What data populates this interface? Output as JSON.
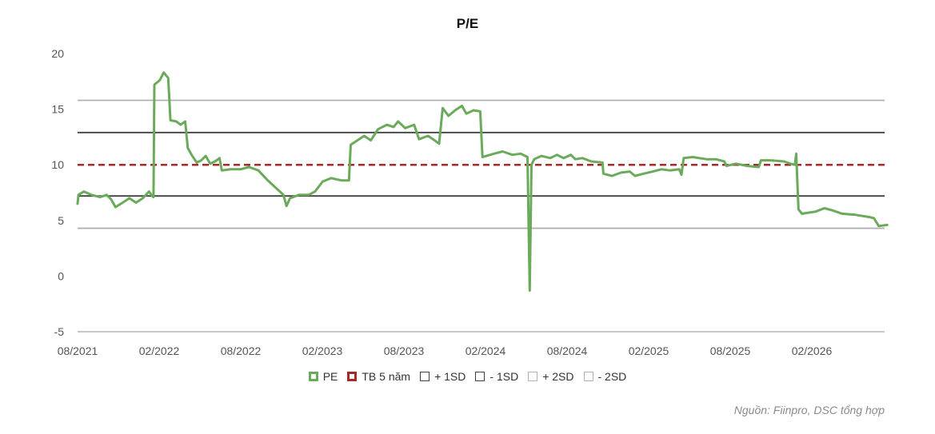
{
  "chart_data": {
    "type": "line",
    "title": "P/E",
    "xlabel": "",
    "ylabel": "",
    "ylim": [
      -5,
      20
    ],
    "y_ticks": [
      "20",
      "15",
      "10",
      "5",
      "0",
      "-5"
    ],
    "x_ticks": [
      "08/2021",
      "02/2022",
      "08/2022",
      "02/2023",
      "08/2023",
      "02/2024",
      "08/2024",
      "02/2025",
      "08/2025",
      "02/2026"
    ],
    "grid": false,
    "legend_position": "bottom",
    "series": [
      {
        "name": "PE",
        "color": "#6aaa5a",
        "style": "solid",
        "points": [
          [
            "2021-08-01",
            6.5
          ],
          [
            "2021-08-03",
            7.3
          ],
          [
            "2021-08-15",
            7.6
          ],
          [
            "2021-09-01",
            7.3
          ],
          [
            "2021-09-20",
            7.1
          ],
          [
            "2021-10-05",
            7.3
          ],
          [
            "2021-10-15",
            6.9
          ],
          [
            "2021-10-25",
            6.2
          ],
          [
            "2021-11-10",
            6.6
          ],
          [
            "2021-11-25",
            7.0
          ],
          [
            "2021-12-10",
            6.6
          ],
          [
            "2021-12-25",
            7.0
          ],
          [
            "2022-01-08",
            7.6
          ],
          [
            "2022-01-15",
            7.2
          ],
          [
            "2022-01-18",
            7.1
          ],
          [
            "2022-01-20",
            17.2
          ],
          [
            "2022-02-01",
            17.6
          ],
          [
            "2022-02-10",
            18.3
          ],
          [
            "2022-02-20",
            17.8
          ],
          [
            "2022-02-25",
            14.0
          ],
          [
            "2022-03-10",
            13.9
          ],
          [
            "2022-03-20",
            13.6
          ],
          [
            "2022-03-30",
            13.9
          ],
          [
            "2022-04-05",
            11.5
          ],
          [
            "2022-04-15",
            10.8
          ],
          [
            "2022-04-25",
            10.2
          ],
          [
            "2022-05-05",
            10.4
          ],
          [
            "2022-05-15",
            10.8
          ],
          [
            "2022-05-25",
            10.1
          ],
          [
            "2022-06-05",
            10.3
          ],
          [
            "2022-06-15",
            10.6
          ],
          [
            "2022-06-20",
            9.5
          ],
          [
            "2022-07-10",
            9.6
          ],
          [
            "2022-08-01",
            9.6
          ],
          [
            "2022-08-20",
            9.8
          ],
          [
            "2022-09-10",
            9.5
          ],
          [
            "2022-10-01",
            8.6
          ],
          [
            "2022-10-20",
            7.9
          ],
          [
            "2022-11-05",
            7.3
          ],
          [
            "2022-11-12",
            6.3
          ],
          [
            "2022-11-20",
            7.0
          ],
          [
            "2022-12-10",
            7.3
          ],
          [
            "2023-01-01",
            7.3
          ],
          [
            "2023-01-15",
            7.6
          ],
          [
            "2023-02-01",
            8.5
          ],
          [
            "2023-02-20",
            8.8
          ],
          [
            "2023-03-15",
            8.6
          ],
          [
            "2023-04-01",
            8.6
          ],
          [
            "2023-04-05",
            11.8
          ],
          [
            "2023-04-20",
            12.2
          ],
          [
            "2023-05-05",
            12.6
          ],
          [
            "2023-05-20",
            12.2
          ],
          [
            "2023-06-05",
            13.2
          ],
          [
            "2023-06-25",
            13.6
          ],
          [
            "2023-07-10",
            13.4
          ],
          [
            "2023-07-20",
            13.9
          ],
          [
            "2023-08-05",
            13.3
          ],
          [
            "2023-08-25",
            13.6
          ],
          [
            "2023-09-05",
            12.3
          ],
          [
            "2023-09-25",
            12.6
          ],
          [
            "2023-10-10",
            12.2
          ],
          [
            "2023-10-20",
            11.9
          ],
          [
            "2023-10-28",
            15.1
          ],
          [
            "2023-11-10",
            14.4
          ],
          [
            "2023-11-25",
            14.9
          ],
          [
            "2023-12-10",
            15.3
          ],
          [
            "2023-12-20",
            14.6
          ],
          [
            "2024-01-05",
            14.9
          ],
          [
            "2024-01-20",
            14.8
          ],
          [
            "2024-01-25",
            10.7
          ],
          [
            "2024-02-20",
            11.0
          ],
          [
            "2024-03-10",
            11.2
          ],
          [
            "2024-04-01",
            10.9
          ],
          [
            "2024-04-20",
            11.0
          ],
          [
            "2024-05-05",
            10.7
          ],
          [
            "2024-05-10",
            -1.3
          ],
          [
            "2024-05-14",
            10.0
          ],
          [
            "2024-05-20",
            10.5
          ],
          [
            "2024-06-05",
            10.8
          ],
          [
            "2024-06-25",
            10.6
          ],
          [
            "2024-07-10",
            10.9
          ],
          [
            "2024-07-25",
            10.6
          ],
          [
            "2024-08-10",
            10.9
          ],
          [
            "2024-08-20",
            10.5
          ],
          [
            "2024-09-05",
            10.6
          ],
          [
            "2024-09-25",
            10.3
          ],
          [
            "2024-10-20",
            10.2
          ],
          [
            "2024-10-22",
            9.2
          ],
          [
            "2024-11-10",
            9.0
          ],
          [
            "2024-12-01",
            9.3
          ],
          [
            "2024-12-20",
            9.4
          ],
          [
            "2025-01-01",
            9.0
          ],
          [
            "2025-01-20",
            9.2
          ],
          [
            "2025-02-10",
            9.4
          ],
          [
            "2025-03-01",
            9.6
          ],
          [
            "2025-03-20",
            9.5
          ],
          [
            "2025-04-10",
            9.6
          ],
          [
            "2025-04-15",
            9.1
          ],
          [
            "2025-04-20",
            10.6
          ],
          [
            "2025-05-10",
            10.7
          ],
          [
            "2025-06-10",
            10.5
          ],
          [
            "2025-07-01",
            10.5
          ],
          [
            "2025-07-20",
            10.3
          ],
          [
            "2025-07-25",
            9.9
          ],
          [
            "2025-08-15",
            10.1
          ],
          [
            "2025-09-10",
            9.9
          ],
          [
            "2025-10-05",
            9.8
          ],
          [
            "2025-10-10",
            10.4
          ],
          [
            "2025-11-01",
            10.4
          ],
          [
            "2025-12-01",
            10.3
          ],
          [
            "2025-12-15",
            10.1
          ],
          [
            "2025-12-25",
            10.0
          ],
          [
            "2025-12-28",
            11.0
          ],
          [
            "2026-01-02",
            6.0
          ],
          [
            "2026-01-10",
            5.6
          ],
          [
            "2026-02-10",
            5.8
          ],
          [
            "2026-03-01",
            6.1
          ],
          [
            "2026-03-20",
            5.9
          ],
          [
            "2026-04-10",
            5.6
          ],
          [
            "2026-05-10",
            5.5
          ],
          [
            "2026-06-10",
            5.3
          ],
          [
            "2026-06-20",
            5.2
          ],
          [
            "2026-07-01",
            4.5
          ],
          [
            "2026-07-20",
            4.6
          ]
        ]
      },
      {
        "name": "TB 5 năm",
        "color": "#a52a2a",
        "style": "dashed",
        "value": 10.0
      },
      {
        "name": "+ 1SD",
        "color": "#404040",
        "style": "solid",
        "value": 12.9
      },
      {
        "name": "- 1SD",
        "color": "#404040",
        "style": "solid",
        "value": 7.2
      },
      {
        "name": "+ 2SD",
        "color": "#b0b0b0",
        "style": "solid",
        "value": 15.8
      },
      {
        "name": "- 2SD",
        "color": "#b0b0b0",
        "style": "solid",
        "value": 4.3
      }
    ]
  },
  "source_note": "Nguồn: Fiinpro, DSC tổng hợp"
}
